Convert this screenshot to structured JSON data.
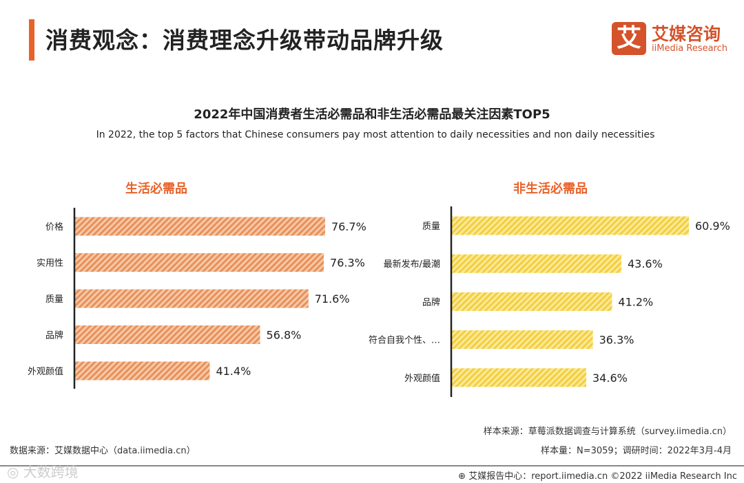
{
  "header": {
    "title": "消费观念：消费理念升级带动品牌升级",
    "logo_cn": "艾媒咨询",
    "logo_en": "iiMedia Research",
    "logo_mark": "艾"
  },
  "chart_data": [
    {
      "type": "bar",
      "orientation": "horizontal",
      "title": "2022年中国消费者生活必需品和非生活必需品最关注因素TOP5",
      "subtitle": "In 2022, the top 5 factors that Chinese consumers pay most attention to daily necessities and non daily necessities",
      "group": "生活必需品",
      "categories": [
        "价格",
        "实用性",
        "质量",
        "品牌",
        "外观颜值"
      ],
      "values": [
        76.7,
        76.3,
        71.6,
        56.8,
        41.4
      ],
      "unit": "%",
      "color": "#E8905A"
    },
    {
      "type": "bar",
      "orientation": "horizontal",
      "group": "非生活必需品",
      "categories": [
        "质量",
        "最新发布/最潮",
        "品牌",
        "符合自我个性、…",
        "外观颜值"
      ],
      "values": [
        60.9,
        43.6,
        41.2,
        36.3,
        34.6
      ],
      "unit": "%",
      "color": "#F2CF3E"
    }
  ],
  "footer": {
    "data_source": "数据来源：艾媒数据中心（data.iimedia.cn）",
    "sample_source": "样本来源：草莓派数据调查与计算系统（survey.iimedia.cn）",
    "sample_size": "样本量：N=3059；调研时间：2022年3月-4月",
    "report": "艾媒报告中心：report.iimedia.cn  ©2022  iiMedia Research  Inc",
    "watermark": "大数跨境"
  }
}
